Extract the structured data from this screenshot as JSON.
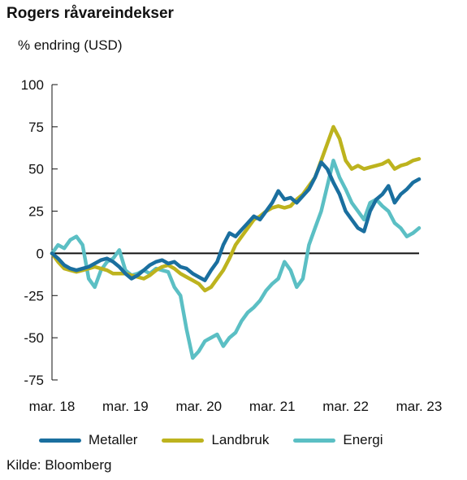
{
  "chart_data": {
    "type": "line",
    "title": "Rogers råvareindekser",
    "ylabel": "% endring (USD)",
    "source": "Kilde: Bloomberg",
    "ylim": [
      -75,
      100
    ],
    "xlim": [
      0,
      60
    ],
    "y_ticks": [
      "100",
      "75",
      "50",
      "25",
      "0",
      "-25",
      "-50",
      "-75"
    ],
    "y_tick_values": [
      100,
      75,
      50,
      25,
      0,
      -25,
      -50,
      -75
    ],
    "x_ticks": [
      "mar. 18",
      "mar. 19",
      "mar. 20",
      "mar. 21",
      "mar. 22",
      "mar. 23"
    ],
    "x_tick_values": [
      0,
      12,
      24,
      36,
      48,
      60
    ],
    "x": [
      0,
      1,
      2,
      3,
      4,
      5,
      6,
      7,
      8,
      9,
      10,
      11,
      12,
      13,
      14,
      15,
      16,
      17,
      18,
      19,
      20,
      21,
      22,
      23,
      24,
      25,
      26,
      27,
      28,
      29,
      30,
      31,
      32,
      33,
      34,
      35,
      36,
      37,
      38,
      39,
      40,
      41,
      42,
      43,
      44,
      45,
      46,
      47,
      48,
      49,
      50,
      51,
      52,
      53,
      54,
      55,
      56,
      57,
      58,
      59,
      60
    ],
    "series": [
      {
        "name": "Metaller",
        "color": "#1a6f9f",
        "values": [
          0,
          -3,
          -7,
          -9,
          -10,
          -9,
          -8,
          -6,
          -4,
          -3,
          -5,
          -8,
          -12,
          -15,
          -13,
          -10,
          -7,
          -5,
          -4,
          -6,
          -5,
          -8,
          -9,
          -12,
          -14,
          -16,
          -10,
          -5,
          5,
          12,
          10,
          14,
          18,
          22,
          20,
          25,
          30,
          37,
          32,
          33,
          30,
          34,
          38,
          45,
          54,
          50,
          42,
          35,
          25,
          20,
          15,
          13,
          25,
          32,
          35,
          40,
          30,
          35,
          38,
          42,
          44
        ]
      },
      {
        "name": "Landbruk",
        "color": "#bdb31e",
        "values": [
          0,
          -5,
          -9,
          -10,
          -11,
          -10,
          -9,
          -8,
          -9,
          -10,
          -12,
          -12,
          -12,
          -13,
          -14,
          -15,
          -13,
          -10,
          -8,
          -7,
          -9,
          -12,
          -14,
          -16,
          -18,
          -22,
          -20,
          -15,
          -10,
          -3,
          5,
          10,
          15,
          20,
          22,
          25,
          27,
          28,
          27,
          28,
          32,
          35,
          40,
          45,
          55,
          65,
          75,
          68,
          55,
          50,
          52,
          50,
          51,
          52,
          53,
          55,
          50,
          52,
          53,
          55,
          56
        ]
      },
      {
        "name": "Energi",
        "color": "#5bbfc4",
        "values": [
          0,
          5,
          3,
          8,
          10,
          5,
          -15,
          -20,
          -10,
          -5,
          -3,
          2,
          -10,
          -13,
          -12,
          -10,
          -12,
          -9,
          -10,
          -11,
          -20,
          -25,
          -45,
          -62,
          -58,
          -52,
          -50,
          -48,
          -55,
          -50,
          -47,
          -40,
          -35,
          -32,
          -28,
          -22,
          -18,
          -15,
          -5,
          -10,
          -20,
          -15,
          5,
          15,
          25,
          40,
          55,
          45,
          38,
          30,
          25,
          20,
          30,
          32,
          28,
          25,
          18,
          15,
          10,
          12,
          15
        ]
      }
    ]
  }
}
